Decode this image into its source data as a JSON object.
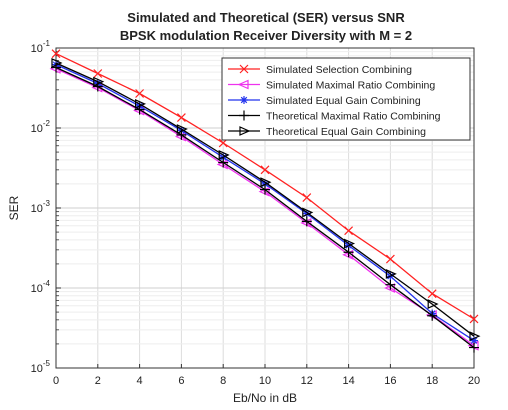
{
  "chart_data": {
    "type": "line",
    "title": "Simulated and Theoretical (SER) versus SNR",
    "subtitle": "BPSK modulation Receiver Diversity with M = 2",
    "xlabel": "Eb/No in dB",
    "ylabel": "SER",
    "x_ticks": [
      "0",
      "2",
      "4",
      "6",
      "8",
      "10",
      "12",
      "14",
      "16",
      "18",
      "20"
    ],
    "xlim": [
      0,
      20
    ],
    "ylim": [
      1e-05,
      0.1
    ],
    "yscale": "log",
    "grid": true,
    "legend_position": "top-right",
    "x": [
      0,
      2,
      4,
      6,
      8,
      10,
      12,
      14,
      16,
      18,
      20
    ],
    "series": [
      {
        "name": "Simulated Selection Combining",
        "color": "#ff2222",
        "marker": "x",
        "values": [
          0.085,
          0.048,
          0.027,
          0.0135,
          0.0065,
          0.003,
          0.00135,
          0.00052,
          0.00023,
          8.5e-05,
          4.1e-05
        ]
      },
      {
        "name": "Simulated Maximal Ratio Combining",
        "color": "#ee33ee",
        "marker": "triangle-left",
        "values": [
          0.055,
          0.032,
          0.0165,
          0.0078,
          0.0035,
          0.0016,
          0.00065,
          0.00026,
          0.0001,
          4.6e-05,
          1.9e-05
        ]
      },
      {
        "name": "Simulated Equal Gain Combining",
        "color": "#2233ee",
        "marker": "asterisk",
        "values": [
          0.062,
          0.036,
          0.0188,
          0.0093,
          0.0043,
          0.002,
          0.00085,
          0.00034,
          0.00014,
          4.8e-05,
          2.2e-05
        ]
      },
      {
        "name": "Theoretical Maximal Ratio Combining",
        "color": "#000000",
        "marker": "plus",
        "values": [
          0.057,
          0.033,
          0.017,
          0.0082,
          0.0037,
          0.0017,
          0.00068,
          0.00028,
          0.00011,
          4.5e-05,
          1.8e-05
        ]
      },
      {
        "name": "Theoretical Equal Gain Combining",
        "color": "#000000",
        "marker": "triangle-right",
        "values": [
          0.065,
          0.038,
          0.02,
          0.0097,
          0.0046,
          0.0021,
          0.00088,
          0.00036,
          0.00015,
          6.3e-05,
          2.5e-05
        ]
      }
    ]
  }
}
